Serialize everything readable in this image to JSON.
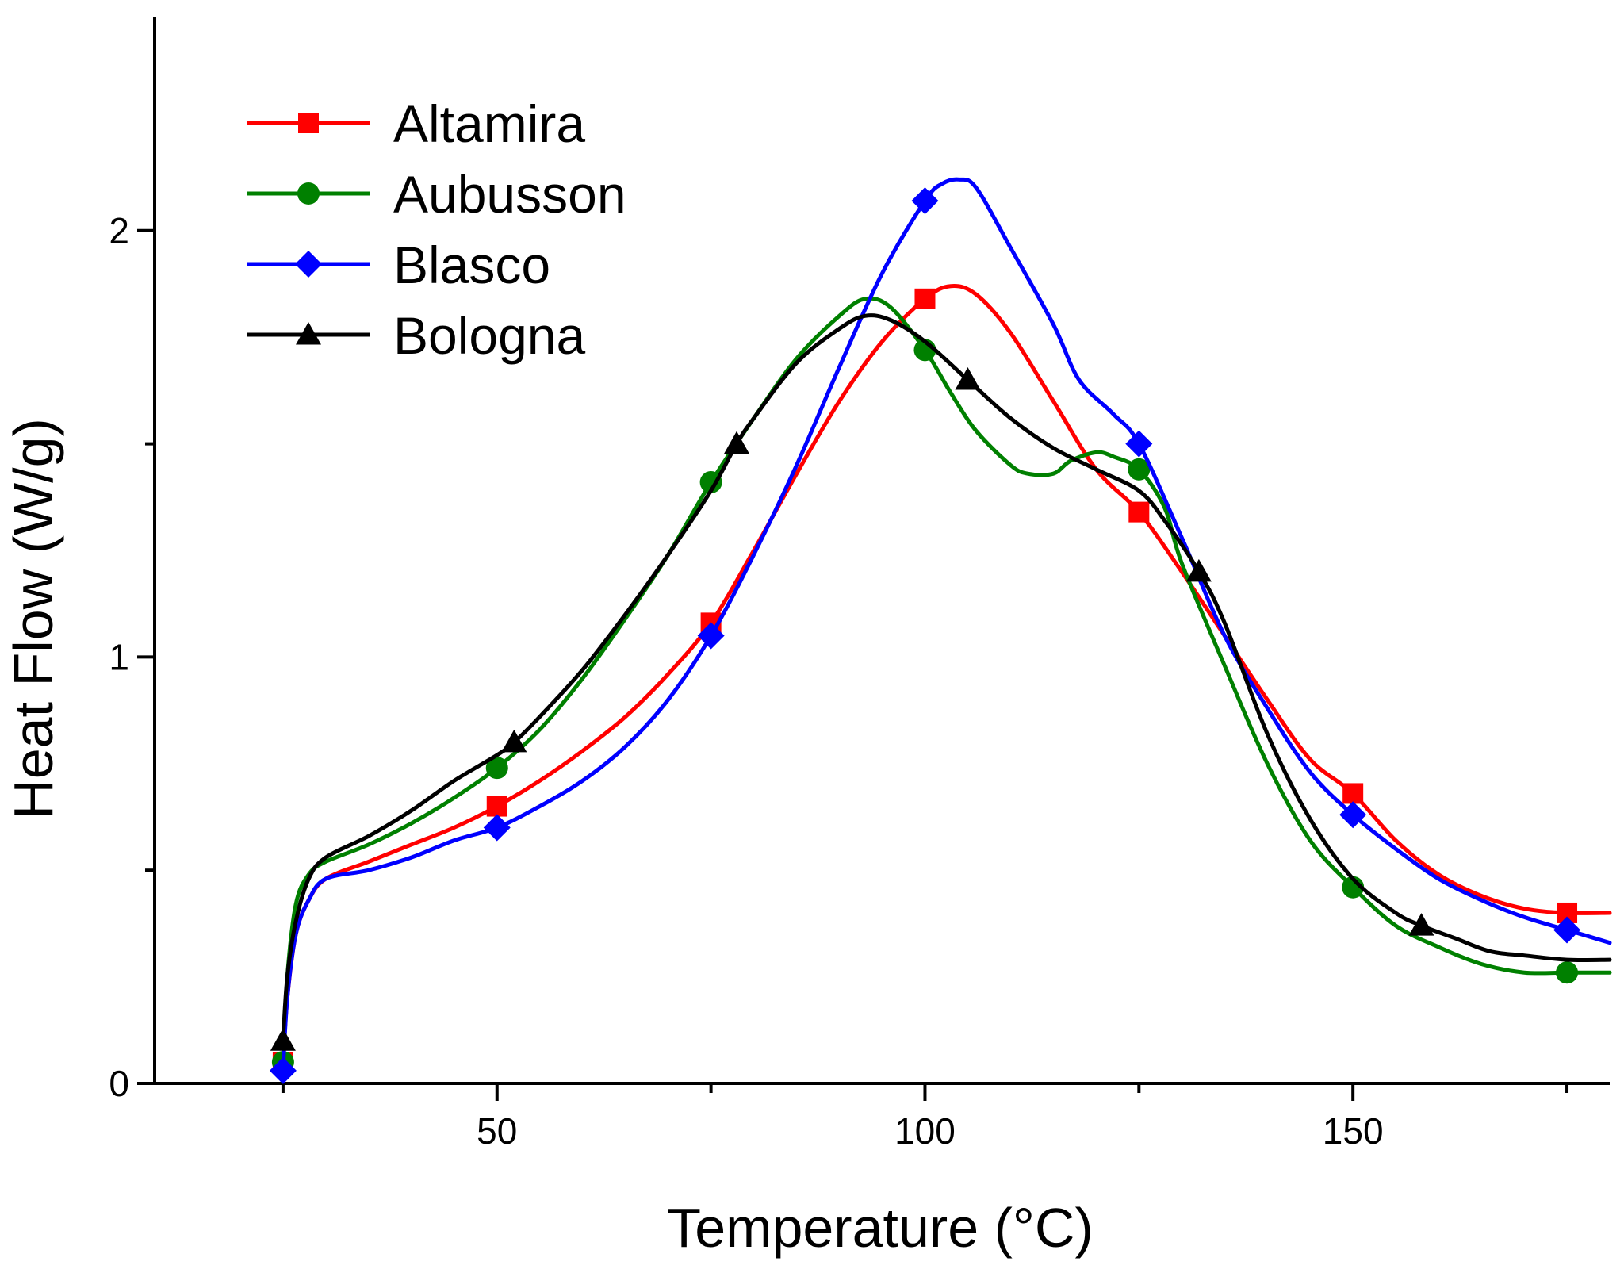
{
  "chart_data": {
    "type": "line",
    "title": "",
    "xlabel": "Temperature (°C)",
    "ylabel": "Heat Flow (W/g)",
    "xlim": [
      10,
      180
    ],
    "ylim": [
      0,
      2.5
    ],
    "xticks": [
      50,
      100,
      150
    ],
    "yticks": [
      0,
      1,
      2
    ],
    "grid": false,
    "legend_position": "top-left",
    "series": [
      {
        "name": "Altamira",
        "color": "#ff0000",
        "marker": "square",
        "points": [
          [
            25,
            0.05
          ],
          [
            25.5,
            0.2
          ],
          [
            26.5,
            0.35
          ],
          [
            28,
            0.43
          ],
          [
            30,
            0.48
          ],
          [
            35,
            0.52
          ],
          [
            40,
            0.56
          ],
          [
            45,
            0.6
          ],
          [
            50,
            0.65
          ],
          [
            55,
            0.71
          ],
          [
            60,
            0.78
          ],
          [
            65,
            0.86
          ],
          [
            70,
            0.96
          ],
          [
            75,
            1.08
          ],
          [
            80,
            1.25
          ],
          [
            85,
            1.43
          ],
          [
            90,
            1.6
          ],
          [
            95,
            1.74
          ],
          [
            100,
            1.84
          ],
          [
            103,
            1.87
          ],
          [
            106,
            1.85
          ],
          [
            110,
            1.76
          ],
          [
            115,
            1.6
          ],
          [
            120,
            1.44
          ],
          [
            125,
            1.34
          ],
          [
            130,
            1.2
          ],
          [
            135,
            1.05
          ],
          [
            140,
            0.9
          ],
          [
            145,
            0.76
          ],
          [
            150,
            0.68
          ],
          [
            155,
            0.57
          ],
          [
            160,
            0.49
          ],
          [
            165,
            0.44
          ],
          [
            170,
            0.41
          ],
          [
            175,
            0.4
          ],
          [
            180,
            0.4
          ]
        ],
        "markers": [
          [
            25,
            0.05
          ],
          [
            50,
            0.65
          ],
          [
            75,
            1.08
          ],
          [
            100,
            1.84
          ],
          [
            125,
            1.34
          ],
          [
            150,
            0.68
          ],
          [
            175,
            0.4
          ]
        ]
      },
      {
        "name": "Aubusson",
        "color": "#008000",
        "marker": "circle",
        "points": [
          [
            25,
            0.05
          ],
          [
            25.5,
            0.25
          ],
          [
            26.5,
            0.42
          ],
          [
            28,
            0.49
          ],
          [
            30,
            0.52
          ],
          [
            35,
            0.56
          ],
          [
            40,
            0.61
          ],
          [
            45,
            0.67
          ],
          [
            50,
            0.74
          ],
          [
            55,
            0.83
          ],
          [
            60,
            0.95
          ],
          [
            65,
            1.09
          ],
          [
            70,
            1.24
          ],
          [
            75,
            1.41
          ],
          [
            80,
            1.56
          ],
          [
            85,
            1.7
          ],
          [
            90,
            1.8
          ],
          [
            93,
            1.84
          ],
          [
            96,
            1.82
          ],
          [
            100,
            1.72
          ],
          [
            103,
            1.62
          ],
          [
            106,
            1.53
          ],
          [
            110,
            1.45
          ],
          [
            112,
            1.43
          ],
          [
            115,
            1.43
          ],
          [
            117,
            1.46
          ],
          [
            120,
            1.48
          ],
          [
            122,
            1.47
          ],
          [
            125,
            1.44
          ],
          [
            128,
            1.35
          ],
          [
            130,
            1.22
          ],
          [
            135,
            0.98
          ],
          [
            140,
            0.75
          ],
          [
            145,
            0.57
          ],
          [
            150,
            0.46
          ],
          [
            155,
            0.37
          ],
          [
            160,
            0.32
          ],
          [
            165,
            0.28
          ],
          [
            170,
            0.26
          ],
          [
            175,
            0.26
          ],
          [
            180,
            0.26
          ]
        ],
        "markers": [
          [
            25,
            0.05
          ],
          [
            50,
            0.74
          ],
          [
            75,
            1.41
          ],
          [
            100,
            1.72
          ],
          [
            125,
            1.44
          ],
          [
            150,
            0.46
          ],
          [
            175,
            0.26
          ]
        ]
      },
      {
        "name": "Blasco",
        "color": "#0000ff",
        "marker": "diamond",
        "points": [
          [
            25,
            0.03
          ],
          [
            25.5,
            0.2
          ],
          [
            26.5,
            0.35
          ],
          [
            28,
            0.43
          ],
          [
            30,
            0.48
          ],
          [
            35,
            0.5
          ],
          [
            40,
            0.53
          ],
          [
            45,
            0.57
          ],
          [
            50,
            0.6
          ],
          [
            55,
            0.65
          ],
          [
            60,
            0.71
          ],
          [
            65,
            0.79
          ],
          [
            70,
            0.9
          ],
          [
            75,
            1.05
          ],
          [
            80,
            1.24
          ],
          [
            85,
            1.45
          ],
          [
            90,
            1.68
          ],
          [
            95,
            1.9
          ],
          [
            100,
            2.07
          ],
          [
            102,
            2.11
          ],
          [
            104,
            2.12
          ],
          [
            106,
            2.1
          ],
          [
            110,
            1.96
          ],
          [
            115,
            1.78
          ],
          [
            118,
            1.65
          ],
          [
            122,
            1.57
          ],
          [
            125,
            1.5
          ],
          [
            130,
            1.28
          ],
          [
            135,
            1.05
          ],
          [
            140,
            0.88
          ],
          [
            145,
            0.73
          ],
          [
            150,
            0.63
          ],
          [
            155,
            0.55
          ],
          [
            160,
            0.48
          ],
          [
            165,
            0.43
          ],
          [
            170,
            0.39
          ],
          [
            175,
            0.36
          ],
          [
            180,
            0.33
          ]
        ],
        "markers": [
          [
            25,
            0.03
          ],
          [
            50,
            0.6
          ],
          [
            75,
            1.05
          ],
          [
            100,
            2.07
          ],
          [
            125,
            1.5
          ],
          [
            150,
            0.63
          ],
          [
            175,
            0.36
          ]
        ]
      },
      {
        "name": "Bologna",
        "color": "#000000",
        "marker": "triangle",
        "points": [
          [
            25,
            0.1
          ],
          [
            25.5,
            0.25
          ],
          [
            26.5,
            0.38
          ],
          [
            28,
            0.48
          ],
          [
            30,
            0.53
          ],
          [
            35,
            0.58
          ],
          [
            40,
            0.64
          ],
          [
            45,
            0.71
          ],
          [
            50,
            0.77
          ],
          [
            52,
            0.8
          ],
          [
            55,
            0.86
          ],
          [
            60,
            0.97
          ],
          [
            65,
            1.1
          ],
          [
            70,
            1.24
          ],
          [
            75,
            1.39
          ],
          [
            78,
            1.5
          ],
          [
            80,
            1.56
          ],
          [
            85,
            1.69
          ],
          [
            90,
            1.77
          ],
          [
            93,
            1.8
          ],
          [
            96,
            1.79
          ],
          [
            100,
            1.74
          ],
          [
            105,
            1.65
          ],
          [
            110,
            1.56
          ],
          [
            115,
            1.49
          ],
          [
            120,
            1.44
          ],
          [
            125,
            1.39
          ],
          [
            128,
            1.32
          ],
          [
            132,
            1.2
          ],
          [
            135,
            1.08
          ],
          [
            140,
            0.82
          ],
          [
            145,
            0.62
          ],
          [
            150,
            0.48
          ],
          [
            155,
            0.4
          ],
          [
            158,
            0.37
          ],
          [
            162,
            0.34
          ],
          [
            166,
            0.31
          ],
          [
            170,
            0.3
          ],
          [
            175,
            0.29
          ],
          [
            180,
            0.29
          ]
        ],
        "markers": [
          [
            25,
            0.1
          ],
          [
            52,
            0.8
          ],
          [
            78,
            1.5
          ],
          [
            105,
            1.65
          ],
          [
            132,
            1.2
          ],
          [
            158,
            0.37
          ]
        ]
      }
    ]
  }
}
